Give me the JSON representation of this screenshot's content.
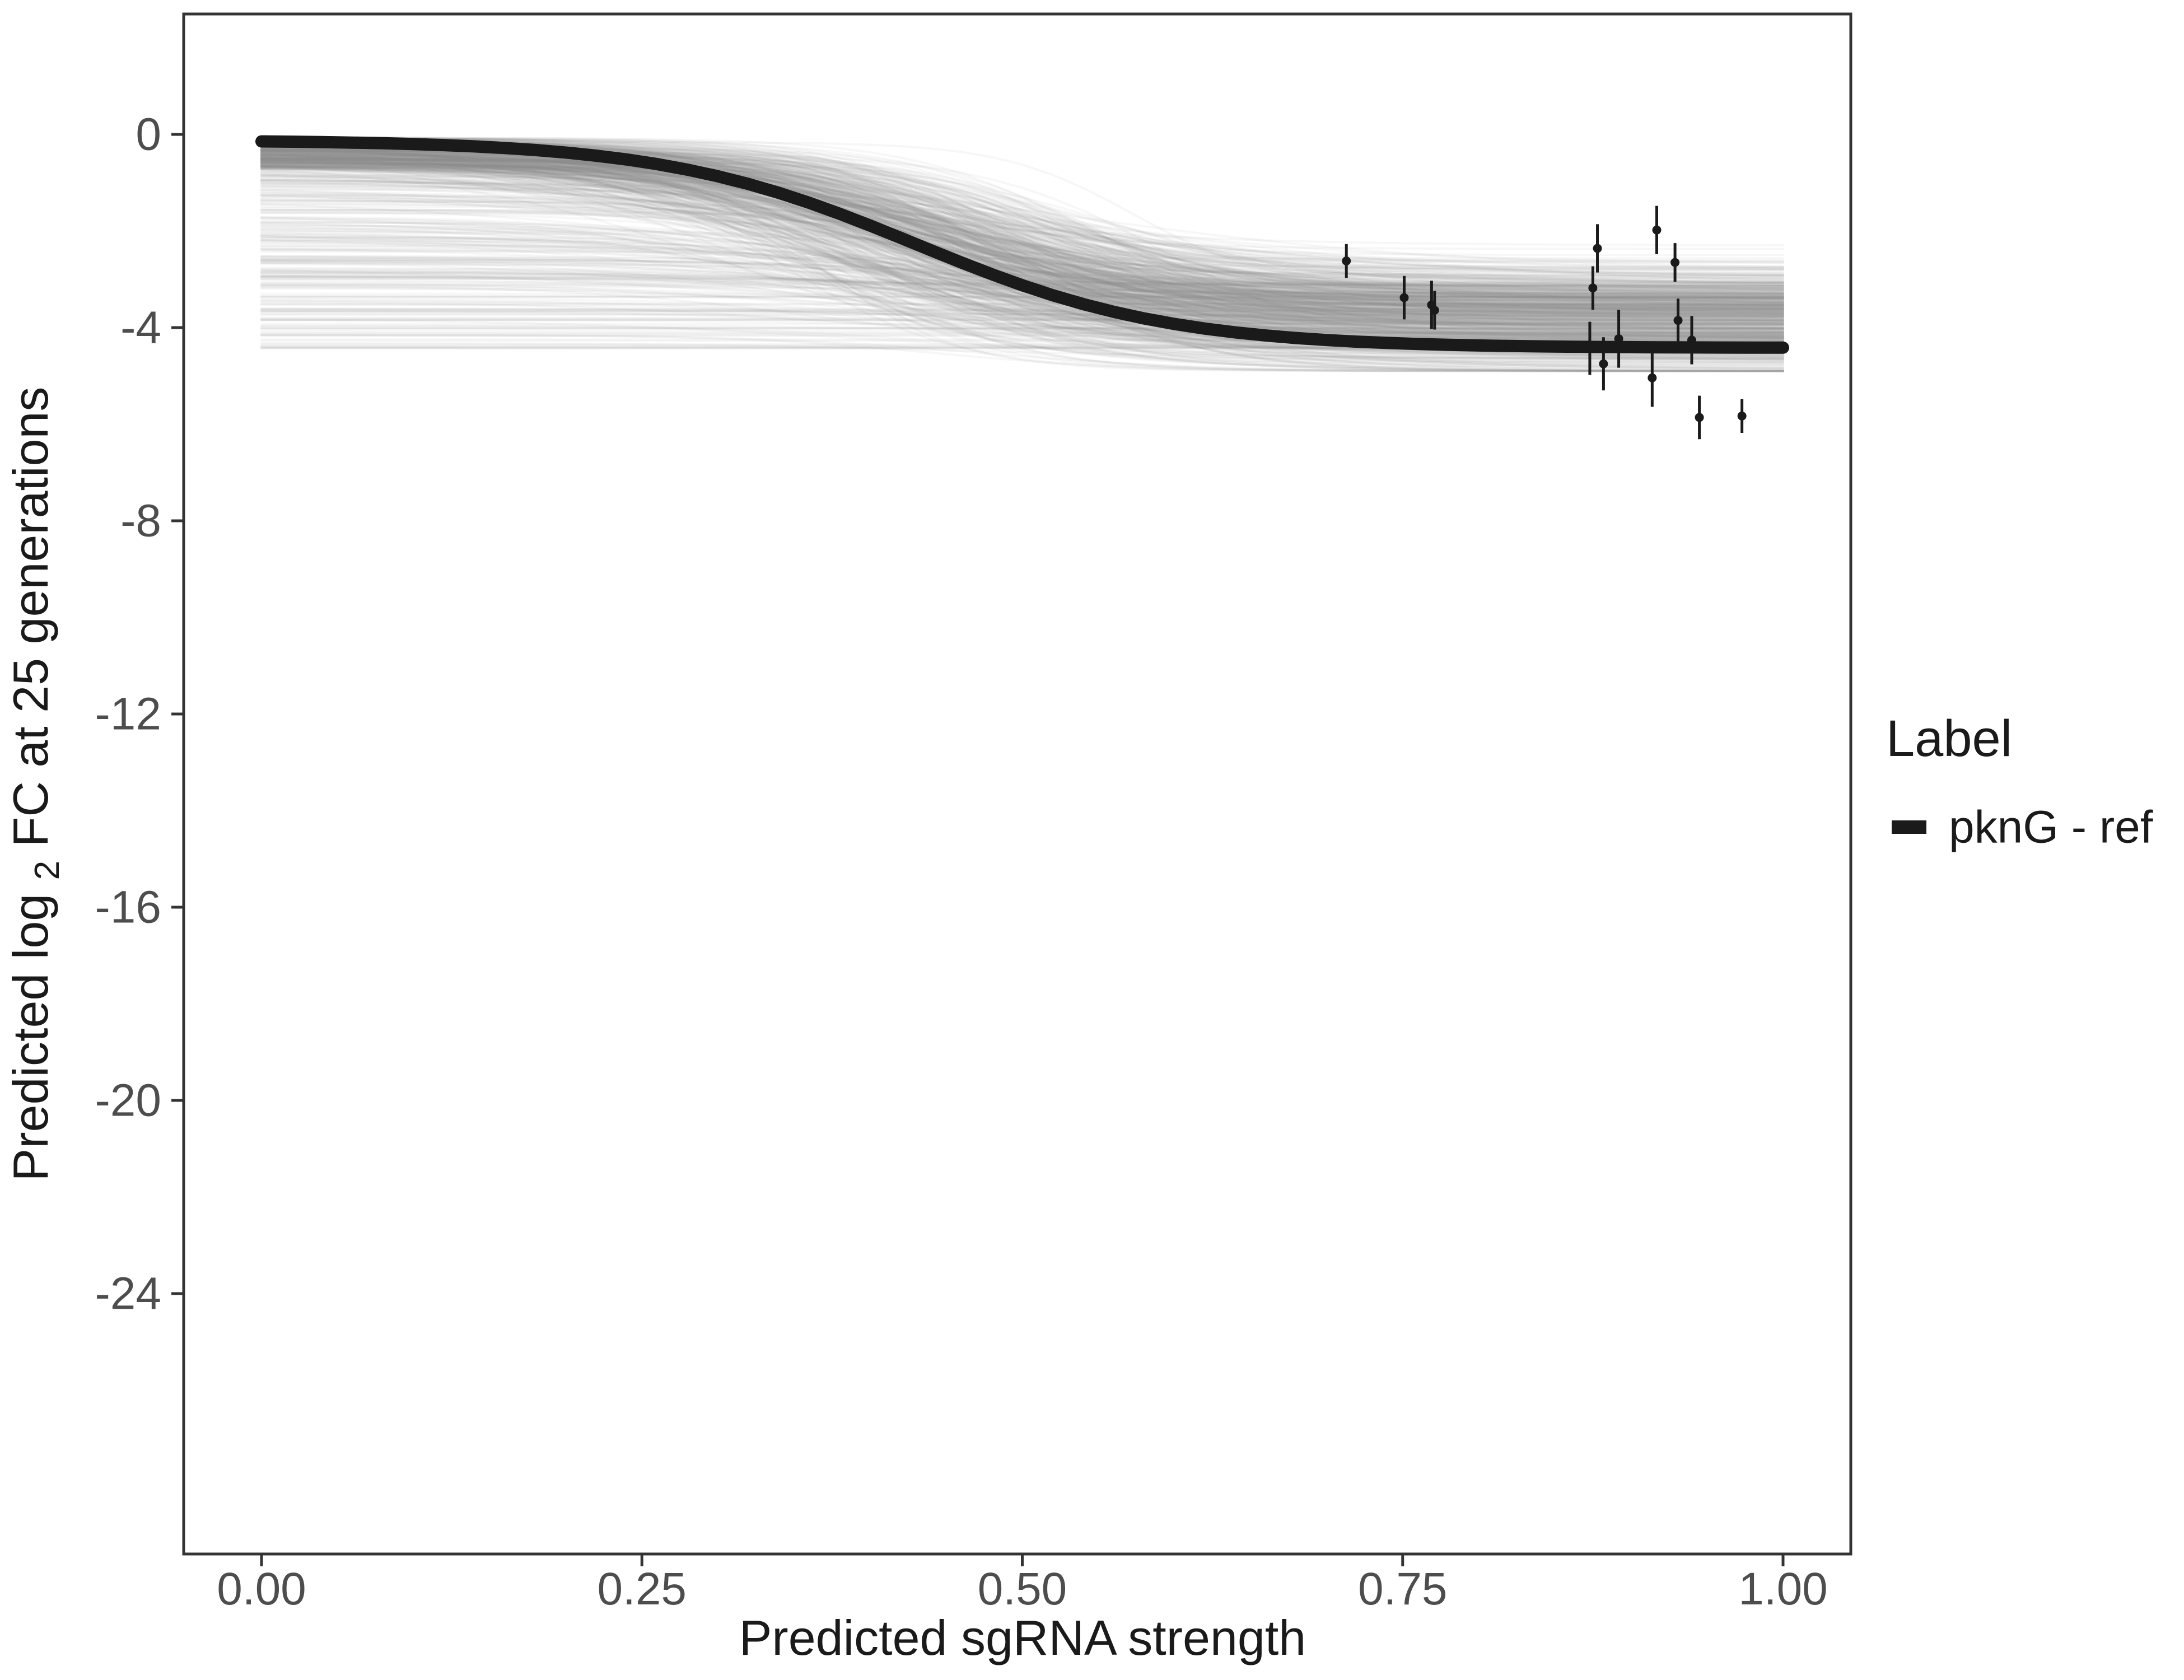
{
  "figure": {
    "background": "#ffffff",
    "panel_border_color": "#333333",
    "tick_color": "#333333",
    "text_color": "#1a1a1a",
    "tick_label_color": "#4d4d4d"
  },
  "chart_data": {
    "type": "line",
    "title": "",
    "xlabel": "Predicted sgRNA strength",
    "ylabel_parts": {
      "prefix": "Predicted  log",
      "subscript": "2",
      "suffix": " FC at 25 generations"
    },
    "x_axis": {
      "tick_values": [
        0,
        0.25,
        0.5,
        0.75,
        1.0
      ],
      "tick_labels": [
        "0.00",
        "0.25",
        "0.50",
        "0.75",
        "1.00"
      ],
      "range": [
        0,
        1
      ]
    },
    "y_axis": {
      "tick_values": [
        0,
        -4,
        -8,
        -12,
        -16,
        -20,
        -24
      ],
      "tick_labels": [
        "0",
        "-4",
        "-8",
        "-12",
        "-16",
        "-20",
        "-24"
      ],
      "range": [
        -29.4,
        2.5
      ]
    },
    "legend": {
      "title": "Label",
      "entries": [
        {
          "label": "pknG - ref",
          "color": "#1a1a1a"
        }
      ]
    },
    "black_curve": {
      "model": "logistic",
      "left_level": -0.12,
      "right_level": -4.42,
      "midpoint": 0.43,
      "steepness": 12,
      "color": "#1a1a1a",
      "stroke_width": 22,
      "x_range": [
        0,
        1
      ]
    },
    "gray_ensemble": {
      "count": 650,
      "seed": 1337,
      "color": "#8c8c8c",
      "opacity": 0.07,
      "stroke_width": 4,
      "left_level_near_zero_fraction": 0.62,
      "left_level_near_zero_range": [
        -0.05,
        -0.7
      ],
      "left_level_spread_range": [
        -0.3,
        -4.45
      ],
      "right_level_mean": -3.8,
      "right_level_sd": 0.55,
      "right_level_min": -4.9,
      "right_level_max": -2.3,
      "midpoint_mean": 0.44,
      "midpoint_sd": 0.055,
      "steepness_mean": 13,
      "steepness_sd": 3.5,
      "steepness_min": 6,
      "x_range": [
        0,
        1
      ]
    },
    "points": [
      {
        "x": 0.713,
        "y": -2.62,
        "err": 0.35
      },
      {
        "x": 0.751,
        "y": -3.38,
        "err": 0.45
      },
      {
        "x": 0.769,
        "y": -3.53,
        "err": 0.5
      },
      {
        "x": 0.771,
        "y": -3.64,
        "err": 0.4
      },
      {
        "x": 0.873,
        "y": -4.43,
        "err": 0.55
      },
      {
        "x": 0.875,
        "y": -3.18,
        "err": 0.45
      },
      {
        "x": 0.878,
        "y": -2.36,
        "err": 0.5
      },
      {
        "x": 0.882,
        "y": -4.75,
        "err": 0.55
      },
      {
        "x": 0.892,
        "y": -4.23,
        "err": 0.6
      },
      {
        "x": 0.914,
        "y": -5.04,
        "err": 0.6
      },
      {
        "x": 0.917,
        "y": -1.98,
        "err": 0.5
      },
      {
        "x": 0.929,
        "y": -2.65,
        "err": 0.4
      },
      {
        "x": 0.931,
        "y": -3.85,
        "err": 0.45
      },
      {
        "x": 0.94,
        "y": -4.26,
        "err": 0.5
      },
      {
        "x": 0.945,
        "y": -5.86,
        "err": 0.45
      },
      {
        "x": 0.973,
        "y": -5.83,
        "err": 0.35
      }
    ],
    "point_style": {
      "color": "#1a1a1a",
      "radius": 8,
      "errorbar_stroke_width": 5
    }
  }
}
